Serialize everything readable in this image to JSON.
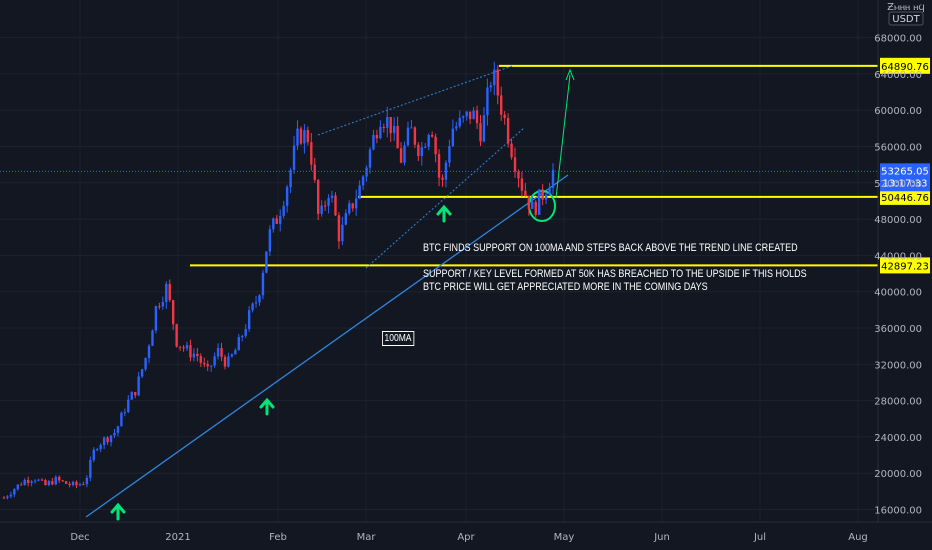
{
  "currency": "USDT",
  "currency_top": "Ƶⲙⲏⲏ ⲏϥ",
  "colors": {
    "up": "#2962ff",
    "down": "#f23645",
    "level": "#ffff00",
    "trend": "#2e86de",
    "arrow": "#00e676",
    "bg": "#131722",
    "grid": "#1e222d"
  },
  "chart_data": {
    "type": "candlestick",
    "price_axis": {
      "min": 14800,
      "max": 72000,
      "ticks": [
        16000,
        20000,
        24000,
        28000,
        32000,
        36000,
        40000,
        44000,
        48000,
        52000,
        56000,
        60000,
        64000,
        68000
      ]
    },
    "time_axis": [
      "Dec",
      "2021",
      "Feb",
      "Mar",
      "Apr",
      "May",
      "Jun",
      "Jul",
      "Aug"
    ],
    "levels": [
      {
        "label": "64890.76",
        "value": 64890.76
      },
      {
        "label": "50446.76",
        "value": 50446.76
      },
      {
        "label": "42897.23",
        "value": 42897.23
      }
    ],
    "current_price": {
      "label": "53265.05",
      "value": 53265.05,
      "countdown": "13:17:33"
    },
    "price_path": [
      17300,
      18300,
      19200,
      19500,
      18600,
      19300,
      18900,
      18600,
      19100,
      23000,
      23800,
      24600,
      27500,
      29300,
      33000,
      38500,
      40500,
      34500,
      33500,
      33000,
      31000,
      33500,
      32000,
      34000,
      37000,
      39500,
      46000,
      48500,
      52500,
      57500,
      57000,
      47500,
      51500,
      46000,
      49000,
      51500,
      55500,
      59500,
      58500,
      54500,
      57800,
      55500,
      59000,
      51000,
      58000,
      58500,
      59800,
      57500,
      64300,
      60000,
      55500,
      51500,
      49000,
      50800,
      53265
    ]
  },
  "annotations": {
    "line1": "BTC FINDS SUPPORT ON 100MA AND STEPS BACK ABOVE THE TREND LINE CREATED",
    "line2": "SUPPORT / KEY LEVEL FORMED AT 50K HAS BREACHED TO THE UPSIDE IF THIS HOLDS",
    "line3": "BTC PRICE WILL GET APPRECIATED MORE IN THE COMING DAYS",
    "ma_tag": "100MA"
  }
}
